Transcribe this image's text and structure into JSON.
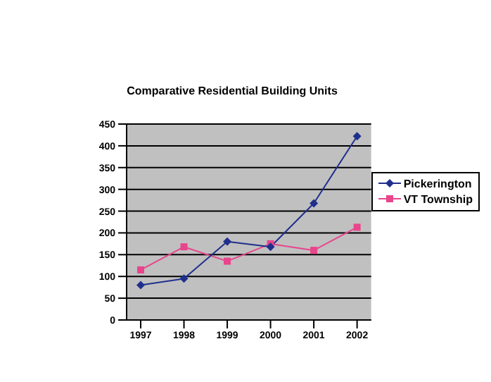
{
  "chart_data": {
    "type": "line",
    "title": "Comparative Residential Building Units",
    "categories": [
      "1997",
      "1998",
      "1999",
      "2000",
      "2001",
      "2002"
    ],
    "series": [
      {
        "name": "Pickerington",
        "color": "#1f2f8c",
        "marker": "diamond",
        "values": [
          80,
          95,
          180,
          168,
          268,
          422
        ]
      },
      {
        "name": "VT Township",
        "color": "#e8458c",
        "marker": "square",
        "values": [
          115,
          168,
          135,
          175,
          160,
          213
        ]
      }
    ],
    "ylim": [
      0,
      450
    ],
    "yticks": [
      0,
      50,
      100,
      150,
      200,
      250,
      300,
      350,
      400,
      450
    ],
    "grid": "y",
    "legend": "right"
  }
}
